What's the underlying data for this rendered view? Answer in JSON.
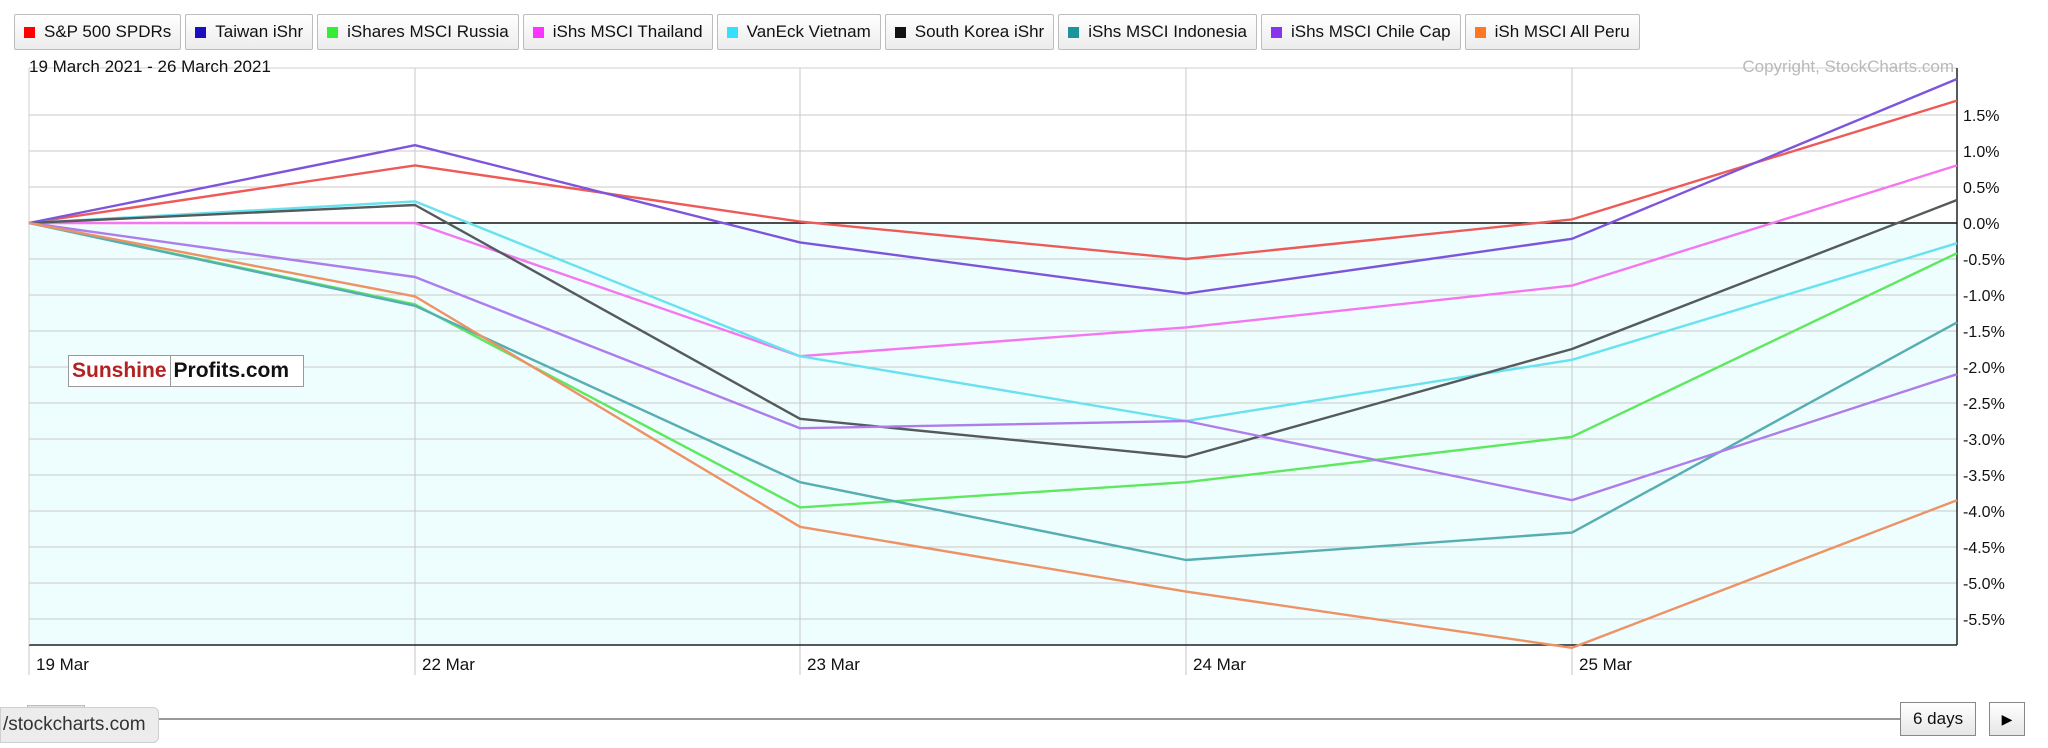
{
  "header": {
    "date_range": "19 March 2021 - 26 March 2021",
    "copyright": "Copyright, StockCharts.com"
  },
  "watermark": {
    "part1": "Sunshine",
    "part2": "Profits.com"
  },
  "controls": {
    "url_tooltip": "/stockcharts.com",
    "days_button": "6 days",
    "next_icon": "play-right-icon"
  },
  "colors": {
    "plot_bg": "#eefdfd",
    "grid": "#c9c9c9",
    "zero_line": "#111111",
    "watermark_red": "#b22222"
  },
  "chart_data": {
    "type": "line",
    "x": [
      "19 Mar",
      "22 Mar",
      "23 Mar",
      "24 Mar",
      "25 Mar",
      "26 Mar"
    ],
    "x_tick_labels": [
      "19  Mar",
      "22  Mar",
      "23  Mar",
      "24  Mar",
      "25  Mar"
    ],
    "y_unit": "%",
    "ylim": [
      -5.95,
      2.0
    ],
    "y_ticks": [
      1.5,
      1.0,
      0.5,
      0.0,
      -0.5,
      -1.0,
      -1.5,
      -2.0,
      -2.5,
      -3.0,
      -3.5,
      -4.0,
      -4.5,
      -5.0,
      -5.5
    ],
    "y_tick_labels": [
      "1.5%",
      "1.0%",
      "0.5%",
      "0.0%",
      "-0.5%",
      "-1.0%",
      "-1.5%",
      "-2.0%",
      "-2.5%",
      "-3.0%",
      "-3.5%",
      "-4.0%",
      "-4.5%",
      "-5.0%",
      "-5.5%"
    ],
    "grid": true,
    "legend_position": "top",
    "series": [
      {
        "name": "S&P 500 SPDRs",
        "swatch": "#ff0000",
        "line": "#ee5a58",
        "values": [
          0.0,
          0.8,
          0.02,
          -0.5,
          0.05,
          1.7
        ]
      },
      {
        "name": "Taiwan iShr",
        "swatch": "#1a0fbf",
        "line": "#7d55dc",
        "values": [
          0.0,
          1.08,
          -0.27,
          -0.98,
          -0.22,
          2.0
        ]
      },
      {
        "name": "iShares MSCI Russia",
        "swatch": "#33ee33",
        "line": "#5ee85e",
        "values": [
          0.0,
          -1.13,
          -3.95,
          -3.6,
          -2.97,
          -0.42
        ]
      },
      {
        "name": "iShs MSCI Thailand",
        "swatch": "#ff33ff",
        "line": "#f477f0",
        "values": [
          0.0,
          0.0,
          -1.85,
          -1.45,
          -0.87,
          0.8
        ]
      },
      {
        "name": "VanEck Vietnam",
        "swatch": "#33e0ff",
        "line": "#68e2ef",
        "values": [
          0.0,
          0.3,
          -1.85,
          -2.75,
          -1.9,
          -0.28
        ]
      },
      {
        "name": "South Korea iShr",
        "swatch": "#111111",
        "line": "#555a5c",
        "values": [
          0.0,
          0.25,
          -2.72,
          -3.25,
          -1.75,
          0.32
        ]
      },
      {
        "name": "iShs MSCI Indonesia",
        "swatch": "#19959b",
        "line": "#56aeb2",
        "values": [
          0.0,
          -1.15,
          -3.6,
          -4.68,
          -4.3,
          -1.38
        ]
      },
      {
        "name": "iShs MSCI Chile Cap",
        "swatch": "#8833ee",
        "line": "#ad7dec",
        "values": [
          0.0,
          -0.75,
          -2.85,
          -2.75,
          -3.85,
          -2.1
        ]
      },
      {
        "name": "iSh MSCI All Peru",
        "swatch": "#ff7722",
        "line": "#ee9266",
        "values": [
          0.0,
          -1.02,
          -4.22,
          -5.12,
          -5.9,
          -3.85
        ]
      }
    ]
  }
}
